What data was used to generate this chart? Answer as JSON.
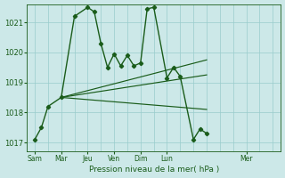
{
  "xlabel": "Pression niveau de la mer( hPa )",
  "bg_color": "#cce8e8",
  "grid_color": "#99cccc",
  "line_color": "#1a5c1a",
  "ylim": [
    1016.7,
    1021.6
  ],
  "yticks": [
    1017,
    1018,
    1019,
    1020,
    1021
  ],
  "xlim": [
    -0.3,
    9.3
  ],
  "x_day_labels": [
    "Sam",
    "Mar",
    "Jeu",
    "Ven",
    "Dim",
    "Lun",
    "Mer"
  ],
  "x_day_positions": [
    0,
    1,
    2,
    3,
    4,
    5,
    8
  ],
  "x_tick_all_positions": [
    0,
    0.5,
    1,
    1.5,
    2,
    2.5,
    3,
    3.5,
    4,
    4.5,
    5,
    5.5,
    6,
    6.5,
    7,
    7.5,
    8,
    8.5,
    9
  ],
  "series": [
    {
      "name": "main_line",
      "x": [
        0,
        0.25,
        0.5,
        1,
        1.5,
        2,
        2.25,
        2.5,
        2.75,
        3,
        3.25,
        3.5,
        3.75,
        4,
        4.25,
        4.5,
        5,
        5.25,
        5.5,
        6,
        6.25,
        6.5
      ],
      "y": [
        1017.1,
        1017.5,
        1018.2,
        1018.5,
        1021.2,
        1021.5,
        1021.35,
        1020.3,
        1019.5,
        1019.95,
        1019.55,
        1019.9,
        1019.55,
        1019.65,
        1021.45,
        1021.5,
        1019.15,
        1019.5,
        1019.2,
        1017.1,
        1017.45,
        1017.3
      ]
    },
    {
      "name": "fan_top",
      "x": [
        1.0,
        6.5
      ],
      "y": [
        1018.5,
        1019.75
      ]
    },
    {
      "name": "fan_mid",
      "x": [
        1.0,
        6.5
      ],
      "y": [
        1018.5,
        1019.25
      ]
    },
    {
      "name": "fan_bot",
      "x": [
        1.0,
        6.5
      ],
      "y": [
        1018.5,
        1018.1
      ]
    }
  ]
}
